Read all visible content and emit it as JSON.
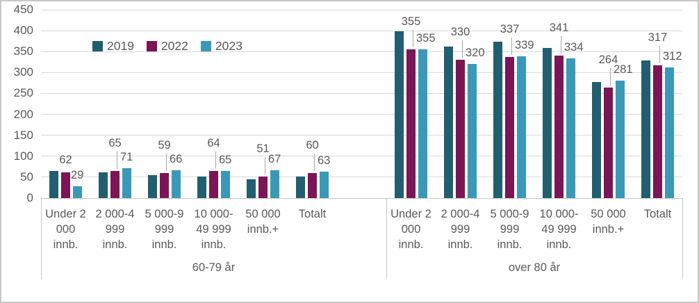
{
  "chart_data": {
    "type": "bar",
    "title": "",
    "xlabel": "",
    "ylabel": "",
    "ylim": [
      0,
      450
    ],
    "ytick_step": 50,
    "grid": true,
    "legend_position": "top-left-inside",
    "legend_entries": [
      "2019",
      "2022",
      "2023"
    ],
    "series_colors": {
      "2019": "#205E70",
      "2022": "#7B1556",
      "2023": "#3999B6"
    },
    "text_color": "#595959",
    "categories": [
      "Under 2 000 innb.",
      "2 000-4 999 innb.",
      "5 000-9 999 innb.",
      "10 000-49 999 innb.",
      "50 000 innb.+",
      "Totalt"
    ],
    "category_label_lines": [
      [
        "Under 2",
        "000",
        "innb."
      ],
      [
        "2 000-4",
        "999",
        "innb."
      ],
      [
        "5 000-9",
        "999",
        "innb."
      ],
      [
        "10 000-",
        "49 999",
        "innb."
      ],
      [
        "50 000",
        "innb.+"
      ],
      [
        "Totalt"
      ]
    ],
    "groups": [
      {
        "label": "60-79 år",
        "series": [
          {
            "name": "2019",
            "values": [
              65,
              61,
              54,
              52,
              45,
              52
            ],
            "values_estimated": true,
            "labels_shown": false
          },
          {
            "name": "2022",
            "values": [
              62,
              65,
              59,
              64,
              51,
              60
            ],
            "labels_shown": true,
            "callout_lines": [
              false,
              true,
              true,
              true,
              true,
              true
            ]
          },
          {
            "name": "2023",
            "values": [
              29,
              71,
              66,
              65,
              67,
              63
            ],
            "labels_shown": true
          }
        ]
      },
      {
        "label": "over 80 år",
        "series": [
          {
            "name": "2019",
            "values": [
              398,
              362,
              374,
              359,
              277,
              329
            ],
            "values_estimated": true,
            "labels_shown": false
          },
          {
            "name": "2022",
            "values": [
              355,
              330,
              337,
              341,
              264,
              317
            ],
            "labels_shown": true,
            "callout_lines": [
              true,
              true,
              true,
              true,
              true,
              true
            ]
          },
          {
            "name": "2023",
            "values": [
              355,
              320,
              339,
              334,
              281,
              312
            ],
            "labels_shown": true
          }
        ]
      }
    ]
  }
}
